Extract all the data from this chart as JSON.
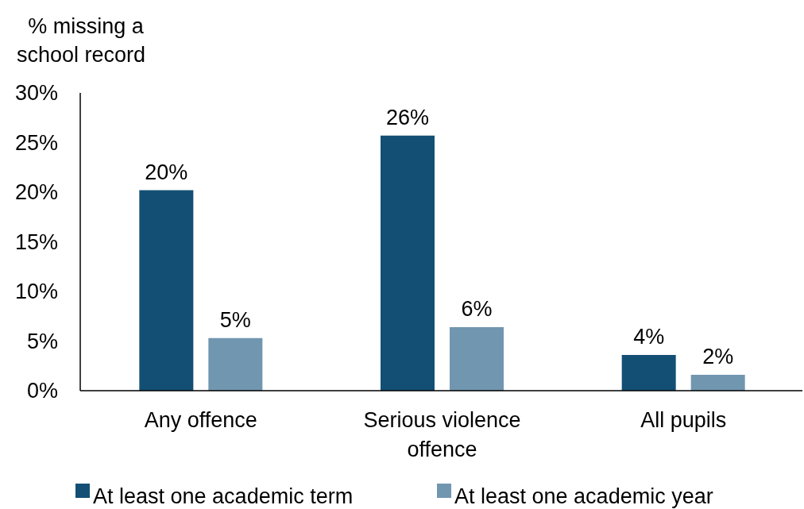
{
  "chart_data": {
    "type": "bar",
    "ylabel": "% missing a school record",
    "categories": [
      "Any offence",
      "Serious violence offence",
      "All pupils"
    ],
    "series": [
      {
        "name": "At least one academic term",
        "color": "#134f74",
        "values": [
          20.2,
          25.7,
          3.6
        ],
        "value_labels": [
          "20%",
          "26%",
          "4%"
        ]
      },
      {
        "name": "At least one academic year",
        "color": "#7196b0",
        "values": [
          5.3,
          6.4,
          1.6
        ],
        "value_labels": [
          "5%",
          "6%",
          "2%"
        ]
      }
    ],
    "ylim": [
      0,
      30
    ],
    "yticks": [
      {
        "value": 0,
        "label": "0%"
      },
      {
        "value": 5,
        "label": "5%"
      },
      {
        "value": 10,
        "label": "10%"
      },
      {
        "value": 15,
        "label": "15%"
      },
      {
        "value": 20,
        "label": "20%"
      },
      {
        "value": 25,
        "label": "25%"
      },
      {
        "value": 30,
        "label": "30%"
      }
    ],
    "grid": false,
    "legend": "bottom"
  }
}
